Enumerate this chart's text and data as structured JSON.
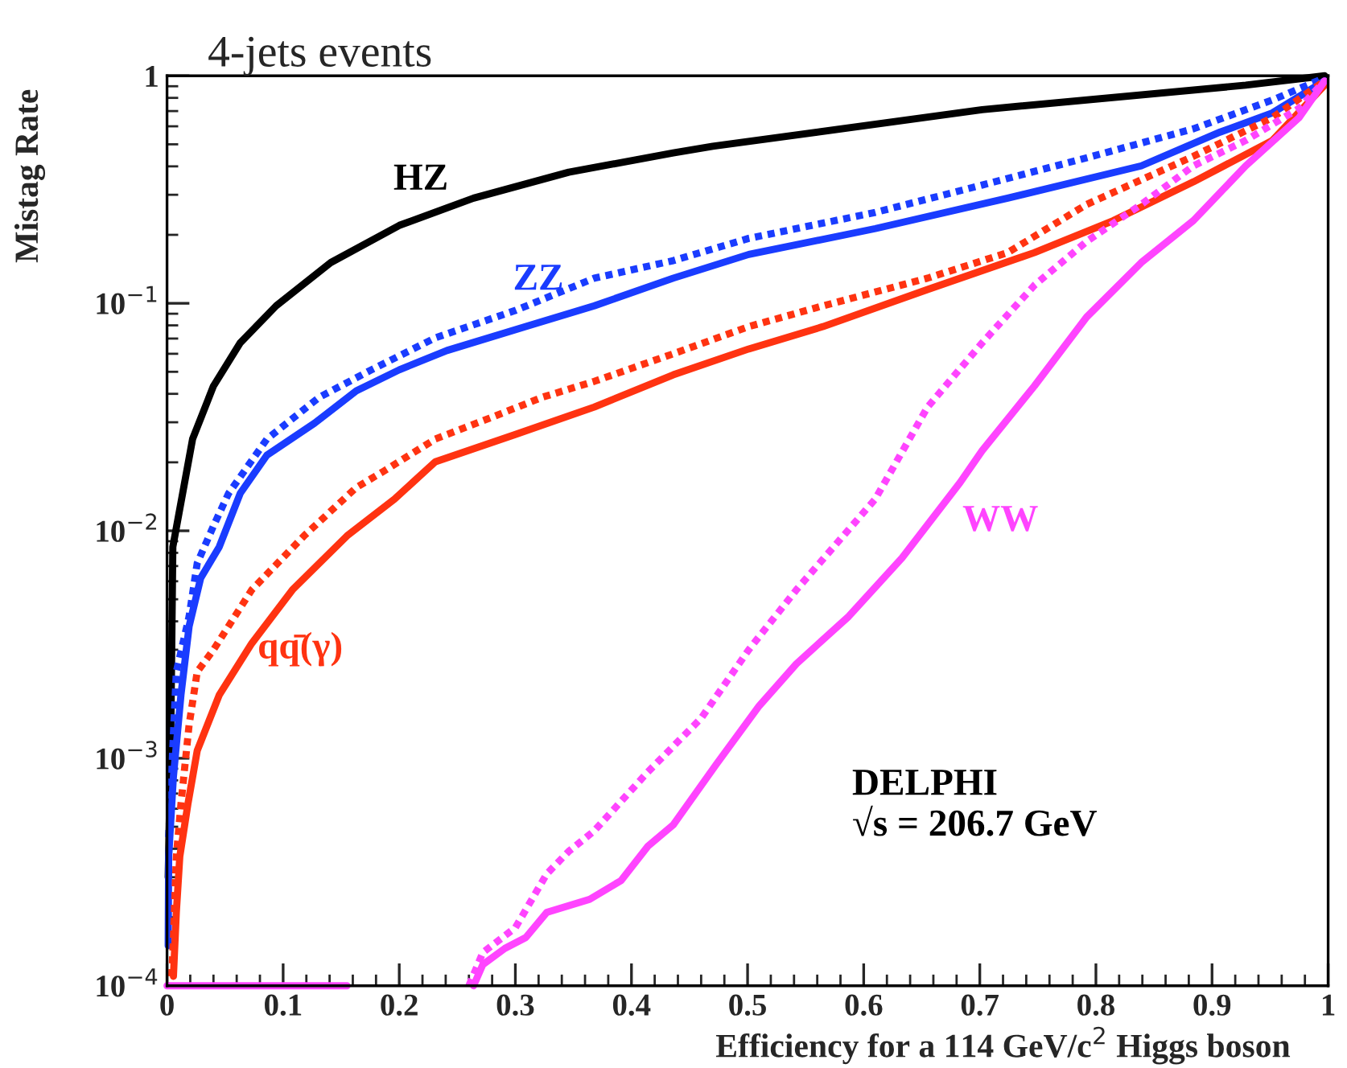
{
  "chart_data": {
    "type": "line",
    "title": "4-jets events",
    "xlabel": "Efficiency for a 114 GeV/c$^{2}$ Higgs boson",
    "ylabel": "Mistag Rate",
    "log": "y",
    "xlim": [
      0,
      1
    ],
    "ylim": [
      0.0001,
      1
    ],
    "xticks": [
      0,
      0.1,
      0.2,
      0.3,
      0.4,
      0.5,
      0.6,
      0.7,
      0.8,
      0.9,
      1
    ],
    "yticks": [
      {
        "value": 0.0001,
        "label": "10$^{−4}$"
      },
      {
        "value": 0.001,
        "label": "10$^{−3}$"
      },
      {
        "value": 0.01,
        "label": "10$^{−2}$"
      },
      {
        "value": 0.1,
        "label": "10$^{−1}$"
      },
      1
    ],
    "grid": false,
    "legend": false,
    "marker": "none",
    "annotations": [
      "DELPHI",
      "√s = 206.7 GeV"
    ],
    "series": [
      {
        "name": "HZ",
        "color": "#000000",
        "line_style": "solid",
        "x": [
          0.001,
          0.003,
          0.005,
          0.022,
          0.04,
          0.063,
          0.094,
          0.141,
          0.2,
          0.264,
          0.346,
          0.436,
          0.47,
          0.702,
          0.929,
          0.997
        ],
        "values": [
          0.0003,
          0.001,
          0.0085,
          0.0253,
          0.0433,
          0.067,
          0.0975,
          0.151,
          0.22,
          0.29,
          0.377,
          0.458,
          0.49,
          0.71,
          0.91,
          1.0
        ]
      },
      {
        "color": "#1a3cff",
        "line_style": "dotted",
        "x": [
          0.0014,
          0.008,
          0.019,
          0.026,
          0.04,
          0.053,
          0.086,
          0.131,
          0.176,
          0.231,
          0.3,
          0.368,
          0.436,
          0.501,
          0.61,
          0.702,
          0.792,
          0.884,
          0.952,
          0.997
        ],
        "values": [
          0.00045,
          0.0024,
          0.0042,
          0.0072,
          0.0105,
          0.0146,
          0.0253,
          0.0386,
          0.051,
          0.0705,
          0.093,
          0.129,
          0.154,
          0.193,
          0.251,
          0.331,
          0.436,
          0.585,
          0.783,
          0.98
        ]
      },
      {
        "name": "ZZ",
        "color": "#1a3cff",
        "line_style": "solid",
        "x": [
          0.001,
          0.0014,
          0.0055,
          0.012,
          0.019,
          0.029,
          0.045,
          0.063,
          0.086,
          0.127,
          0.163,
          0.2,
          0.241,
          0.309,
          0.368,
          0.436,
          0.501,
          0.61,
          0.724,
          0.839,
          0.907,
          0.952,
          0.997
        ],
        "values": [
          0.00015,
          0.00037,
          0.00083,
          0.0019,
          0.0038,
          0.0062,
          0.0085,
          0.0146,
          0.0215,
          0.0297,
          0.0412,
          0.051,
          0.062,
          0.079,
          0.0975,
          0.129,
          0.164,
          0.213,
          0.29,
          0.402,
          0.566,
          0.687,
          0.95
        ]
      },
      {
        "color": "#ff3311",
        "line_style": "dotted",
        "x": [
          0.004,
          0.0055,
          0.008,
          0.012,
          0.019,
          0.026,
          0.04,
          0.073,
          0.118,
          0.163,
          0.186,
          0.231,
          0.278,
          0.323,
          0.368,
          0.436,
          0.501,
          0.565,
          0.655,
          0.724,
          0.792,
          0.884,
          0.952,
          0.997
        ],
        "values": [
          0.00011,
          0.00016,
          0.00037,
          0.00063,
          0.0014,
          0.0024,
          0.003,
          0.0055,
          0.0095,
          0.0155,
          0.0182,
          0.0253,
          0.0313,
          0.0386,
          0.0454,
          0.06,
          0.079,
          0.0975,
          0.129,
          0.167,
          0.272,
          0.443,
          0.655,
          0.95
        ]
      },
      {
        "name": "qq̄(γ)",
        "color": "#ff3311",
        "line_style": "solid",
        "x": [
          0.0055,
          0.008,
          0.011,
          0.018,
          0.026,
          0.045,
          0.073,
          0.108,
          0.155,
          0.196,
          0.231,
          0.3,
          0.368,
          0.436,
          0.501,
          0.565,
          0.655,
          0.747,
          0.815,
          0.884,
          0.952,
          0.997
        ],
        "values": [
          0.00011,
          0.00021,
          0.00037,
          0.00063,
          0.00108,
          0.0019,
          0.0032,
          0.0055,
          0.0095,
          0.0138,
          0.0201,
          0.0265,
          0.035,
          0.0485,
          0.063,
          0.079,
          0.115,
          0.167,
          0.231,
          0.342,
          0.52,
          0.91
        ]
      },
      {
        "color": "#ff44ff",
        "line_style": "dotted",
        "x": [
          0.26,
          0.272,
          0.3,
          0.327,
          0.346,
          0.368,
          0.414,
          0.46,
          0.501,
          0.542,
          0.61,
          0.655,
          0.702,
          0.747,
          0.792,
          0.839,
          0.884,
          0.929,
          0.975,
          0.997
        ],
        "values": [
          0.0001,
          0.00014,
          0.00018,
          0.00031,
          0.00039,
          0.00048,
          0.00087,
          0.0015,
          0.003,
          0.0055,
          0.0138,
          0.035,
          0.067,
          0.12,
          0.187,
          0.272,
          0.402,
          0.52,
          0.72,
          0.95
        ]
      },
      {
        "name": "WW",
        "color": "#ff44ff",
        "line_style": "solid",
        "x": [
          0,
          0.155,
          0.2,
          0.264,
          0.272,
          0.291,
          0.309,
          0.327,
          0.364,
          0.391,
          0.414,
          0.436,
          0.473,
          0.51,
          0.542,
          0.587,
          0.633,
          0.683,
          0.702,
          0.747,
          0.792,
          0.839,
          0.884,
          0.929,
          0.975,
          0.997
        ],
        "values": [
          0.0001,
          0.0001,
          null,
          0.0001,
          0.000124,
          0.000146,
          0.000163,
          0.00021,
          0.00024,
          0.00029,
          0.00041,
          0.00051,
          0.00094,
          0.0017,
          0.0026,
          0.0042,
          0.0076,
          0.0163,
          0.0225,
          0.0433,
          0.087,
          0.151,
          0.231,
          0.402,
          0.655,
          0.95
        ]
      }
    ]
  }
}
